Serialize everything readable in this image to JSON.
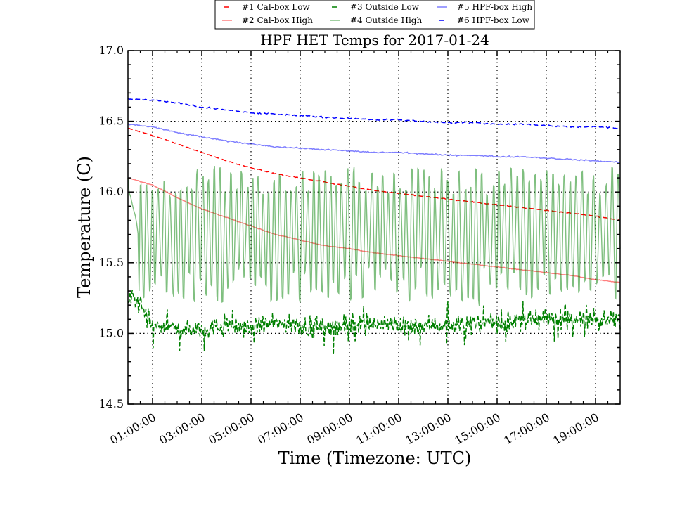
{
  "chart_data": {
    "type": "line",
    "title": "HPF HET Temps for 2017-01-24",
    "xlabel": "Time (Timezone: UTC)",
    "ylabel": "Temperature (C)",
    "xlim_hours": [
      0.0,
      20.0
    ],
    "ylim": [
      14.5,
      17.0
    ],
    "yticks": [
      14.5,
      15.0,
      15.5,
      16.0,
      16.5,
      17.0
    ],
    "ytick_labels": [
      "14.5",
      "15.0",
      "15.5",
      "16.0",
      "16.5",
      "17.0"
    ],
    "xticks_hours": [
      1,
      3,
      5,
      7,
      9,
      11,
      13,
      15,
      17,
      19
    ],
    "xtick_labels": [
      "01:00:00",
      "03:00:00",
      "05:00:00",
      "07:00:00",
      "09:00:00",
      "11:00:00",
      "13:00:00",
      "15:00:00",
      "17:00:00",
      "19:00:00"
    ],
    "grid": true,
    "legend_position": "top-center",
    "series": [
      {
        "name": "#1 Cal-box Low",
        "color": "#ff0000",
        "style": "dashed",
        "x_hours": [
          0,
          1,
          2,
          3,
          4,
          5,
          6,
          7,
          8,
          9,
          10,
          11,
          12,
          13,
          14,
          15,
          16,
          17,
          18,
          19,
          20
        ],
        "values": [
          16.45,
          16.4,
          16.34,
          16.28,
          16.22,
          16.17,
          16.13,
          16.1,
          16.07,
          16.04,
          16.01,
          15.99,
          15.97,
          15.95,
          15.93,
          15.91,
          15.89,
          15.87,
          15.85,
          15.83,
          15.8
        ]
      },
      {
        "name": "#2 Cal-box High",
        "color": "#ff0000",
        "style": "solid",
        "x_hours": [
          0,
          1,
          2,
          3,
          4,
          5,
          6,
          7,
          8,
          9,
          10,
          11,
          12,
          13,
          14,
          15,
          16,
          17,
          18,
          19,
          20
        ],
        "values": [
          16.1,
          16.05,
          15.96,
          15.88,
          15.82,
          15.76,
          15.7,
          15.66,
          15.62,
          15.6,
          15.57,
          15.55,
          15.53,
          15.51,
          15.49,
          15.47,
          15.45,
          15.43,
          15.41,
          15.38,
          15.36
        ]
      },
      {
        "name": "#3 Outside Low",
        "color": "#008000",
        "style": "dashed",
        "x_hours": [
          0,
          0.5,
          1,
          1.5,
          2,
          3,
          4,
          5,
          6,
          7,
          8,
          9,
          10,
          11,
          12,
          13,
          14,
          15,
          16,
          17,
          18,
          19,
          20
        ],
        "values": [
          15.25,
          15.2,
          15.05,
          15.05,
          15.03,
          15.03,
          15.05,
          15.05,
          15.07,
          15.05,
          15.05,
          15.06,
          15.07,
          15.05,
          15.06,
          15.06,
          15.07,
          15.07,
          15.08,
          15.1,
          15.1,
          15.09,
          15.1
        ]
      },
      {
        "name": "#4 Outside High",
        "color": "#008000",
        "style": "solid",
        "x_hours": [
          0,
          0.4,
          20
        ],
        "values": [
          16.1,
          15.3,
          15.6
        ],
        "oscillation_range": [
          15.2,
          16.1
        ]
      },
      {
        "name": "#5 HPF-box High",
        "color": "#0000ff",
        "style": "solid",
        "x_hours": [
          0,
          1,
          2,
          3,
          4,
          5,
          6,
          7,
          8,
          9,
          10,
          11,
          12,
          13,
          14,
          15,
          16,
          17,
          18,
          19,
          20
        ],
        "values": [
          16.48,
          16.46,
          16.42,
          16.39,
          16.36,
          16.34,
          16.32,
          16.31,
          16.3,
          16.29,
          16.28,
          16.28,
          16.27,
          16.26,
          16.26,
          16.25,
          16.25,
          16.24,
          16.23,
          16.22,
          16.21
        ]
      },
      {
        "name": "#6 HPF-box Low",
        "color": "#0000ff",
        "style": "dashed",
        "x_hours": [
          0,
          1,
          2,
          3,
          4,
          5,
          6,
          7,
          8,
          9,
          10,
          11,
          12,
          13,
          14,
          15,
          16,
          17,
          18,
          19,
          20
        ],
        "values": [
          16.66,
          16.65,
          16.63,
          16.6,
          16.58,
          16.56,
          16.55,
          16.54,
          16.53,
          16.52,
          16.51,
          16.51,
          16.5,
          16.49,
          16.49,
          16.48,
          16.48,
          16.47,
          16.46,
          16.46,
          16.45
        ]
      }
    ]
  }
}
